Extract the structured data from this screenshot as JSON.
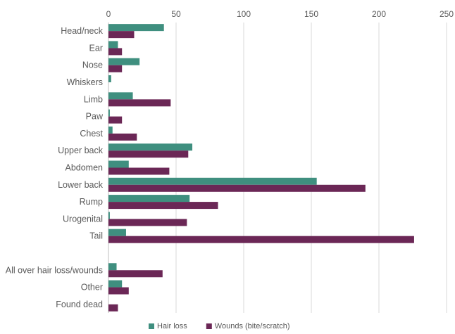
{
  "chart_data": {
    "type": "bar",
    "orientation": "horizontal",
    "title": "",
    "xlabel": "",
    "ylabel": "",
    "xlim": [
      0,
      250
    ],
    "x_ticks": [
      "0",
      "50",
      "100",
      "150",
      "200",
      "250"
    ],
    "grid": true,
    "axis_position": "top",
    "legend_position": "bottom",
    "categories": [
      "Head/neck",
      "Ear",
      "Nose",
      "Whiskers",
      "Limb",
      "Paw",
      "Chest",
      "Upper back",
      "Abdomen",
      "Lower back",
      "Rump",
      "Urogenital",
      "Tail",
      "",
      "All over hair loss/wounds",
      "Other",
      "Found dead"
    ],
    "series": [
      {
        "name": "Hair loss",
        "color": "#3f8f7f",
        "values": [
          41,
          7,
          23,
          2,
          18,
          1,
          3,
          62,
          15,
          154,
          60,
          1,
          13,
          null,
          6,
          10,
          0
        ]
      },
      {
        "name": "Wounds (bite/scratch)",
        "color": "#6b2756",
        "values": [
          19,
          10,
          10,
          0,
          46,
          10,
          21,
          59,
          45,
          190,
          81,
          58,
          226,
          null,
          40,
          15,
          7
        ]
      }
    ]
  }
}
